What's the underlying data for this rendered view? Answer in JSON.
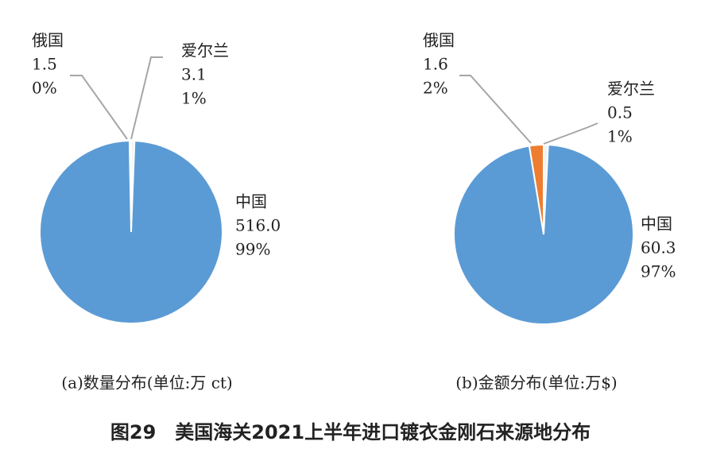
{
  "title": "图29　美国海关2021上半年进口镀衣金刚石来源地分布",
  "chart_data": [
    {
      "type": "pie",
      "caption": "(a)数量分布(单位:万 ct)",
      "categories": [
        "俄国",
        "爱尔兰",
        "中国"
      ],
      "values": [
        1.5,
        3.1,
        516.0
      ],
      "value_labels": [
        "1.5",
        "3.1",
        "516.0"
      ],
      "percent_labels": [
        "0%",
        "1%",
        "99%"
      ],
      "colors": [
        "#ed7d31",
        "#f2f2f2",
        "#5b9bd5"
      ]
    },
    {
      "type": "pie",
      "caption": "(b)金额分布(单位:万$)",
      "categories": [
        "俄国",
        "爱尔兰",
        "中国"
      ],
      "values": [
        1.6,
        0.5,
        60.3
      ],
      "value_labels": [
        "1.6",
        "0.5",
        "60.3"
      ],
      "percent_labels": [
        "2%",
        "1%",
        "97%"
      ],
      "colors": [
        "#ed7d31",
        "#f2f2f2",
        "#5b9bd5"
      ]
    }
  ]
}
